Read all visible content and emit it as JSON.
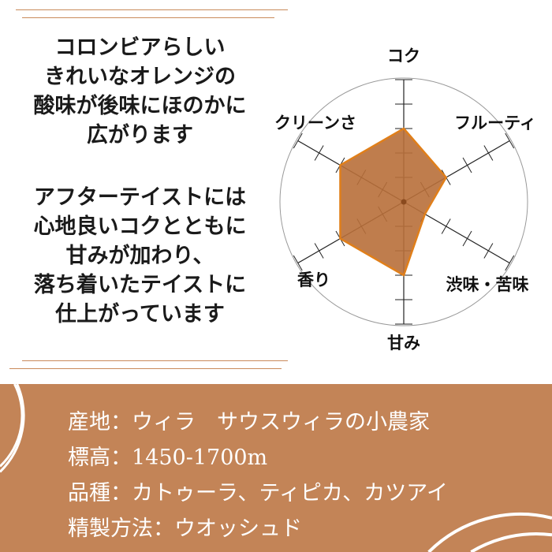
{
  "description_lines_1": [
    "コロンビアらしい",
    "きれいなオレンジの",
    "酸味が後味にほのかに",
    "広がります"
  ],
  "description_lines_2": [
    "アフターテイストには",
    "心地良いコクとともに",
    "甘みが加わり、",
    "落ち着いたテイストに",
    "仕上がっています"
  ],
  "chart_data": {
    "type": "radar",
    "categories": [
      "コク",
      "フルーティ",
      "渋味・苦味",
      "甘み",
      "香り",
      "クリーンさ"
    ],
    "values": [
      3,
      2,
      1,
      3,
      3,
      3
    ],
    "max": 5,
    "fill_color": "#b86f3a",
    "stroke_color": "#e07f1a"
  },
  "specs": [
    {
      "label": "産地",
      "value": "ウィラ　サウスウィラの小農家"
    },
    {
      "label": "標高",
      "value": "1450-1700m"
    },
    {
      "label": "品種",
      "value": "カトゥーラ、ティピカ、カツアイ"
    },
    {
      "label": "精製方法",
      "value": "ウオッシュド"
    }
  ],
  "colors": {
    "band": "#c38457",
    "accent": "#c98a5a"
  }
}
